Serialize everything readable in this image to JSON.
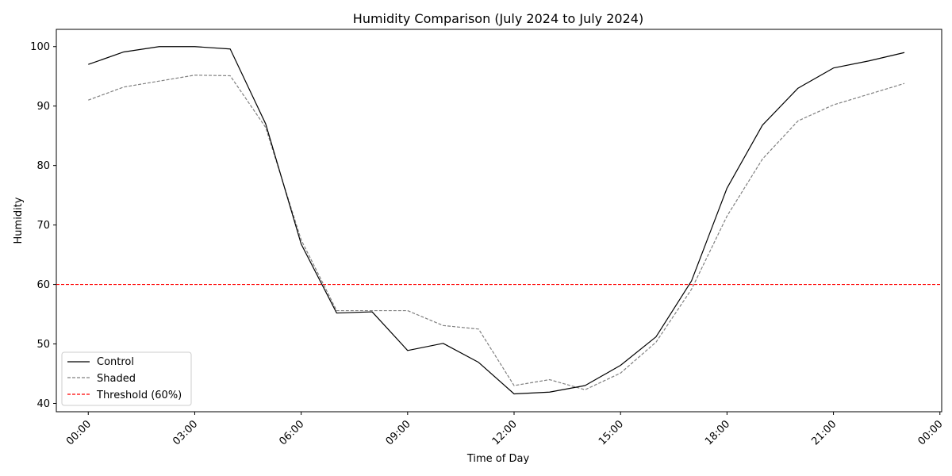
{
  "chart_data": {
    "type": "line",
    "title": "Humidity Comparison (July 2024 to July 2024)",
    "xlabel": "Time of Day",
    "ylabel": "Humidity",
    "x": [
      "00:00",
      "01:00",
      "02:00",
      "03:00",
      "04:00",
      "05:00",
      "06:00",
      "07:00",
      "08:00",
      "09:00",
      "10:00",
      "11:00",
      "12:00",
      "13:00",
      "14:00",
      "15:00",
      "16:00",
      "17:00",
      "18:00",
      "19:00",
      "20:00",
      "21:00",
      "22:00",
      "23:00"
    ],
    "x_ticks": [
      "00:00",
      "03:00",
      "06:00",
      "09:00",
      "12:00",
      "15:00",
      "18:00",
      "21:00",
      "00:00"
    ],
    "y_ticks": [
      40,
      50,
      60,
      70,
      80,
      90,
      100
    ],
    "xlim_hours": [
      -0.9,
      24.05
    ],
    "ylim": [
      38.6,
      102.9
    ],
    "series": [
      {
        "name": "Control",
        "color": "#000000",
        "dash": "solid",
        "values": [
          97.0,
          99.1,
          100.0,
          100.0,
          99.6,
          87.0,
          66.8,
          55.2,
          55.4,
          48.9,
          50.1,
          46.9,
          41.6,
          41.9,
          43.0,
          46.4,
          51.2,
          60.6,
          76.2,
          86.8,
          93.0,
          96.4,
          97.6,
          99.0
        ]
      },
      {
        "name": "Shaded",
        "color": "#808080",
        "dash": "dashed",
        "values": [
          91.0,
          93.2,
          94.2,
          95.2,
          95.1,
          86.4,
          67.5,
          55.6,
          55.6,
          55.6,
          53.1,
          52.5,
          43.0,
          44.0,
          42.3,
          45.1,
          50.3,
          59.2,
          71.5,
          81.1,
          87.5,
          90.2,
          92.0,
          93.8
        ]
      }
    ],
    "threshold": {
      "name": "Threshold (60%)",
      "value": 60,
      "color": "#ff0000",
      "dash": "dashed"
    },
    "legend_position": "lower-left",
    "grid": false
  }
}
